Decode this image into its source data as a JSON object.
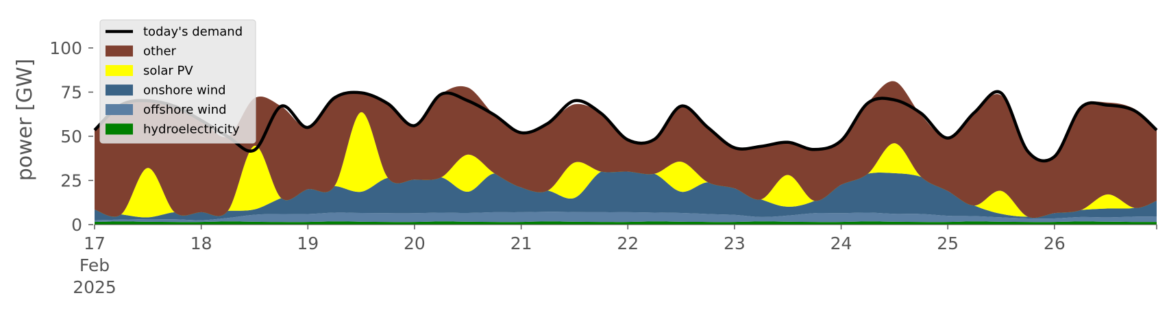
{
  "chart_data": {
    "type": "area",
    "title": "",
    "xlabel": "",
    "ylabel": "power [GW]",
    "ylim": [
      0,
      110
    ],
    "xlim": [
      "2025-02-17",
      "2025-02-26 23:00"
    ],
    "yticks": [
      "0",
      "25",
      "50",
      "75",
      "100"
    ],
    "xticks": [
      {
        "label": "17",
        "date": "2025-02-17",
        "sub1": "Feb",
        "sub2": "2025"
      },
      {
        "label": "18",
        "date": "2025-02-18"
      },
      {
        "label": "19",
        "date": "2025-02-19"
      },
      {
        "label": "20",
        "date": "2025-02-20"
      },
      {
        "label": "21",
        "date": "2025-02-21"
      },
      {
        "label": "22",
        "date": "2025-02-22"
      },
      {
        "label": "23",
        "date": "2025-02-23"
      },
      {
        "label": "24",
        "date": "2025-02-24"
      },
      {
        "label": "25",
        "date": "2025-02-25"
      },
      {
        "label": "26",
        "date": "2025-02-26"
      }
    ],
    "grid": false,
    "legend_position": "top-left",
    "stacked": true,
    "x_resolution": "6-hourly (00:00, 06:00, 12:00, 18:00)",
    "x": [
      "2025-02-17 00:00",
      "2025-02-17 06:00",
      "2025-02-17 12:00",
      "2025-02-17 18:00",
      "2025-02-18 00:00",
      "2025-02-18 06:00",
      "2025-02-18 12:00",
      "2025-02-18 18:00",
      "2025-02-19 00:00",
      "2025-02-19 06:00",
      "2025-02-19 12:00",
      "2025-02-19 18:00",
      "2025-02-20 00:00",
      "2025-02-20 06:00",
      "2025-02-20 12:00",
      "2025-02-20 18:00",
      "2025-02-21 00:00",
      "2025-02-21 06:00",
      "2025-02-21 12:00",
      "2025-02-21 18:00",
      "2025-02-22 00:00",
      "2025-02-22 06:00",
      "2025-02-22 12:00",
      "2025-02-22 18:00",
      "2025-02-23 00:00",
      "2025-02-23 06:00",
      "2025-02-23 12:00",
      "2025-02-23 18:00",
      "2025-02-24 00:00",
      "2025-02-24 06:00",
      "2025-02-24 12:00",
      "2025-02-24 18:00",
      "2025-02-25 00:00",
      "2025-02-25 06:00",
      "2025-02-25 12:00",
      "2025-02-25 18:00",
      "2025-02-26 00:00",
      "2025-02-26 06:00",
      "2025-02-26 12:00",
      "2025-02-26 18:00",
      "2025-02-26 23:00"
    ],
    "series": [
      {
        "name": "hydroelectricity",
        "color": "#008000",
        "values": [
          1.5,
          1.8,
          1.6,
          1.5,
          1.5,
          1.8,
          1.6,
          1.5,
          1.5,
          1.8,
          1.6,
          1.5,
          1.5,
          1.8,
          1.6,
          1.5,
          1.5,
          1.8,
          1.6,
          1.5,
          1.5,
          1.8,
          1.6,
          1.5,
          1.5,
          1.8,
          1.6,
          1.5,
          1.5,
          1.8,
          1.6,
          1.5,
          1.5,
          1.8,
          1.6,
          1.5,
          1.5,
          1.8,
          1.6,
          1.5,
          1.5
        ]
      },
      {
        "name": "offshore wind",
        "color": "#5b7fa3",
        "values": [
          1,
          1,
          1.5,
          1.5,
          1,
          2,
          4,
          4.5,
          4.5,
          5,
          5,
          5,
          5,
          5,
          5,
          5.5,
          5.5,
          5.5,
          5.5,
          5.5,
          5.5,
          5,
          5,
          4.5,
          4,
          2.5,
          3.5,
          5,
          5,
          5,
          4.5,
          4.5,
          3.5,
          3,
          2.5,
          2,
          2,
          2.5,
          2.5,
          3,
          3
        ]
      },
      {
        "name": "onshore wind",
        "color": "#3a6386",
        "values": [
          6,
          3,
          1,
          4,
          4.5,
          4,
          3,
          9,
          14,
          15,
          12,
          20,
          19,
          20,
          12,
          22,
          14,
          12,
          8,
          23,
          23,
          22,
          12,
          18,
          15,
          10,
          5,
          7,
          16,
          22,
          23,
          21,
          14,
          6,
          2,
          1,
          3,
          4,
          5,
          5,
          9
        ]
      },
      {
        "name": "solar PV",
        "color": "#ffff00",
        "values": [
          0,
          0,
          28,
          0,
          0,
          0,
          36,
          0,
          0,
          0,
          45,
          0,
          0,
          0,
          21,
          0,
          0,
          0,
          20,
          0,
          0,
          0,
          17,
          0,
          0,
          0,
          18,
          0,
          0,
          0,
          17,
          0,
          0,
          0,
          13,
          0,
          0,
          0,
          8,
          0,
          0
        ]
      },
      {
        "name": "other",
        "color": "#7f4030",
        "values": [
          45,
          62,
          38,
          60,
          52,
          42,
          27,
          52,
          35,
          50,
          11,
          42,
          30,
          47,
          38,
          33,
          31,
          38,
          33,
          33,
          18,
          20,
          31,
          31,
          23,
          30,
          18,
          29,
          25,
          40,
          35,
          35,
          30,
          53,
          54,
          38,
          32,
          58,
          52,
          56,
          40
        ]
      },
      {
        "name": "today's demand",
        "color": "#000000",
        "kind": "line",
        "values": [
          53.5,
          67.8,
          70.1,
          67,
          59,
          49.8,
          42.2,
          67,
          55,
          71.8,
          74.6,
          68.5,
          56,
          73.8,
          70.1,
          62,
          52,
          57.3,
          70.1,
          63,
          48,
          48.3,
          67.1,
          55,
          43.5,
          44.3,
          46.6,
          42.5,
          47.5,
          68.8,
          70.6,
          63,
          49,
          63.5,
          74.5,
          41.5,
          38.5,
          66.3,
          67.6,
          64.5,
          53.5
        ]
      }
    ]
  }
}
